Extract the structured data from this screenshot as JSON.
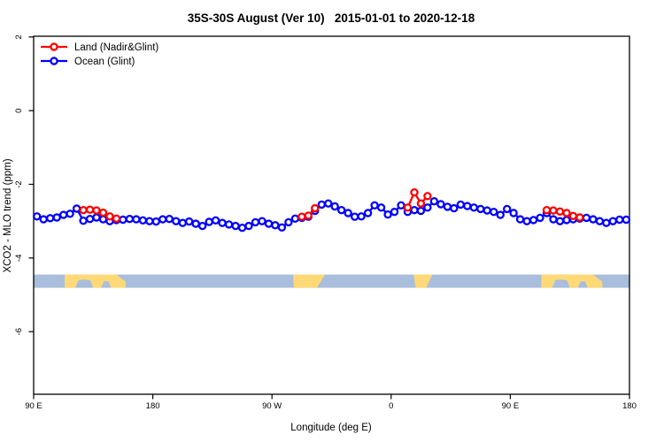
{
  "page": {
    "background": "#ffffff",
    "text_color": "#000000"
  },
  "chart_data": {
    "type": "line",
    "title": "35S-30S August (Ver 10)   2015-01-01 to 2020-12-18",
    "xlabel": "Longitude (deg E)",
    "ylabel": "XCO2 - MLO trend (ppm)",
    "xlim": [
      90,
      540
    ],
    "ylim": [
      -7.7,
      2.02
    ],
    "grid": false,
    "legend_position": "top-left",
    "x_ticks": [
      {
        "value": 90,
        "label": "90 E"
      },
      {
        "value": 180,
        "label": "180"
      },
      {
        "value": 270,
        "label": "90 W"
      },
      {
        "value": 360,
        "label": "0"
      },
      {
        "value": 450,
        "label": "90 E"
      },
      {
        "value": 540,
        "label": "180"
      }
    ],
    "y_ticks": [
      {
        "value": 2,
        "label": "2"
      },
      {
        "value": 0,
        "label": "0"
      },
      {
        "value": -2,
        "label": "-2"
      },
      {
        "value": -4,
        "label": "-4"
      },
      {
        "value": -6,
        "label": "-6"
      }
    ],
    "x_bins_start": 92.5,
    "x_bin_step": 5,
    "x_bin_count": 90,
    "series": [
      {
        "name": "Land (Nadir&Glint)",
        "color": "#FF0000",
        "marker": "open-circle",
        "segments": [
          {
            "start_index": 7,
            "values": [
              -2.7,
              -2.69,
              -2.71,
              -2.77,
              -2.87,
              -2.93
            ]
          },
          {
            "start_index": 40,
            "values": [
              -2.88,
              -2.85,
              -2.65
            ]
          },
          {
            "start_index": 56,
            "values": [
              -2.63,
              -2.22,
              -2.52,
              -2.32
            ]
          },
          {
            "start_index": 77,
            "values": [
              -2.7,
              -2.71,
              -2.74,
              -2.78,
              -2.86,
              -2.9
            ]
          }
        ]
      },
      {
        "name": "Ocean (Glint)",
        "color": "#0000FF",
        "marker": "open-circle",
        "values": [
          -2.87,
          -2.95,
          -2.92,
          -2.9,
          -2.83,
          -2.8,
          -2.66,
          -2.99,
          -2.94,
          -2.9,
          -2.95,
          -3.0,
          -2.97,
          -2.96,
          -2.94,
          -2.95,
          -2.98,
          -3.0,
          -3.01,
          -2.95,
          -2.94,
          -3.0,
          -3.05,
          -3.01,
          -3.07,
          -3.13,
          -3.02,
          -2.98,
          -3.05,
          -3.09,
          -3.13,
          -3.18,
          -3.13,
          -3.03,
          -3.0,
          -3.07,
          -3.11,
          -3.17,
          -3.03,
          -2.93,
          -2.91,
          -2.88,
          -2.72,
          -2.55,
          -2.52,
          -2.6,
          -2.7,
          -2.78,
          -2.88,
          -2.87,
          -2.78,
          -2.57,
          -2.63,
          -2.82,
          -2.75,
          -2.57,
          -2.75,
          -2.7,
          -2.72,
          -2.63,
          -2.46,
          -2.54,
          -2.61,
          -2.65,
          -2.55,
          -2.59,
          -2.63,
          -2.67,
          -2.71,
          -2.75,
          -2.83,
          -2.67,
          -2.78,
          -2.95,
          -3.0,
          -2.97,
          -2.91,
          -2.78,
          -2.95,
          -3.0,
          -2.97,
          -2.95,
          -2.93,
          -2.91,
          -2.95,
          -3.0,
          -3.05,
          -3.0,
          -2.96,
          -2.96
        ]
      }
    ],
    "land_ocean_band": {
      "description": "land/ocean strip map for the 35S-30S latitude band",
      "ocean_color": "#A9BEDC",
      "land_color": "#FFD977",
      "y_top_value": -4.45,
      "y_bottom_value": -4.81,
      "land_patches": [
        {
          "name": "australia-west-copy",
          "polygon": [
            [
              113.5,
              0
            ],
            [
              152.5,
              0
            ],
            [
              159.5,
              0.55
            ],
            [
              159.5,
              1
            ],
            [
              148.5,
              1
            ],
            [
              146.5,
              0.5
            ],
            [
              143,
              0.5
            ],
            [
              141,
              1
            ],
            [
              135,
              1
            ],
            [
              133,
              0.45
            ],
            [
              129,
              0.38
            ],
            [
              124,
              0.42
            ],
            [
              121.5,
              1
            ],
            [
              113.5,
              1
            ]
          ]
        },
        {
          "name": "south-america",
          "polygon": [
            [
              286,
              0
            ],
            [
              310,
              0
            ],
            [
              304,
              1
            ],
            [
              286.5,
              1
            ]
          ]
        },
        {
          "name": "south-africa",
          "polygon": [
            [
              377,
              0
            ],
            [
              391,
              0
            ],
            [
              386.5,
              1
            ],
            [
              378.5,
              1
            ]
          ]
        },
        {
          "name": "australia-east-copy",
          "polygon": [
            [
              473.5,
              0
            ],
            [
              512.5,
              0
            ],
            [
              519.5,
              0.55
            ],
            [
              519.5,
              1
            ],
            [
              508.5,
              1
            ],
            [
              506.5,
              0.5
            ],
            [
              503,
              0.5
            ],
            [
              501,
              1
            ],
            [
              495,
              1
            ],
            [
              493,
              0.45
            ],
            [
              489,
              0.38
            ],
            [
              484,
              0.42
            ],
            [
              481.5,
              1
            ],
            [
              473.5,
              1
            ]
          ]
        }
      ]
    }
  },
  "legend": {
    "items": [
      {
        "label": "Land (Nadir&Glint)",
        "color": "#FF0000"
      },
      {
        "label": "Ocean (Glint)",
        "color": "#0000FF"
      }
    ]
  }
}
